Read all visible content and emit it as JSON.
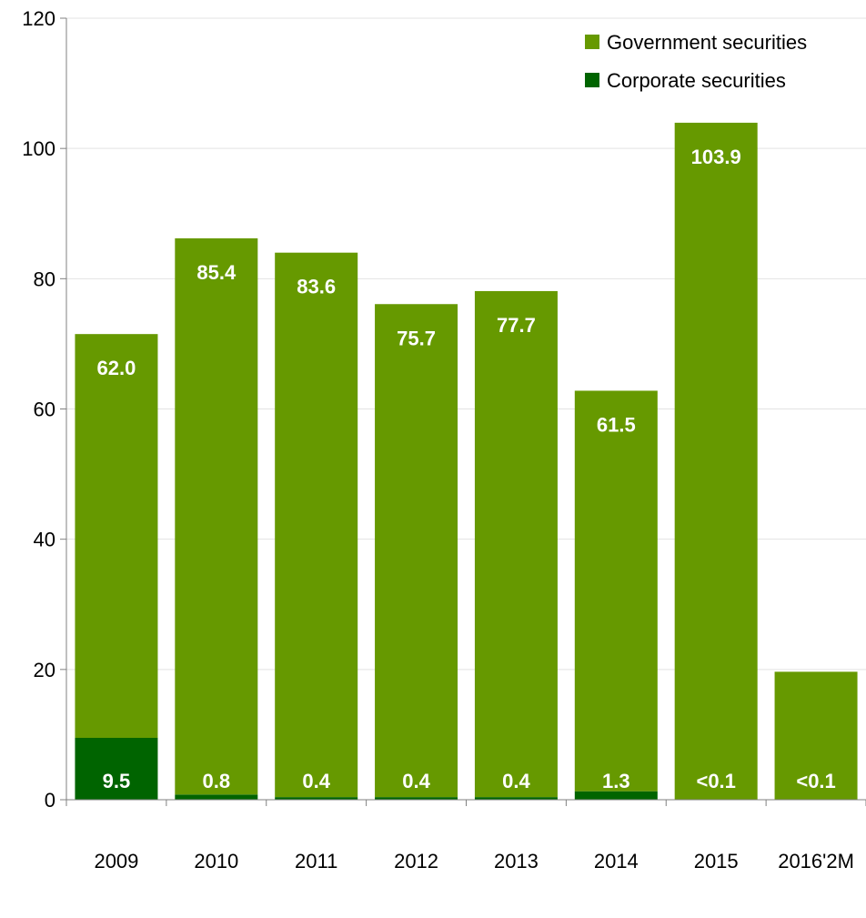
{
  "chart_data": {
    "type": "bar",
    "stacked": true,
    "categories": [
      "2009",
      "2010",
      "2011",
      "2012",
      "2013",
      "2014",
      "2015",
      "2016'2M"
    ],
    "series": [
      {
        "name": "Corporate securities",
        "color": "#006400",
        "values": [
          9.5,
          0.8,
          0.4,
          0.4,
          0.4,
          1.3,
          0.05,
          0.05
        ],
        "labels": [
          "9.5",
          "0.8",
          "0.4",
          "0.4",
          "0.4",
          "1.3",
          "<0.1",
          "<0.1"
        ]
      },
      {
        "name": "Government securities",
        "color": "#669900",
        "values": [
          62.0,
          85.4,
          83.6,
          75.7,
          77.7,
          61.5,
          103.9,
          19.6
        ],
        "labels": [
          "62.0",
          "85.4",
          "83.6",
          "75.7",
          "77.7",
          "61.5",
          "103.9",
          ""
        ]
      }
    ],
    "y_ticks": [
      "0",
      "20",
      "40",
      "60",
      "80",
      "100",
      "120"
    ],
    "ylim": [
      0,
      120
    ],
    "grid": true,
    "legend_position": "top-right",
    "title": "",
    "xlabel": "",
    "ylabel": ""
  }
}
